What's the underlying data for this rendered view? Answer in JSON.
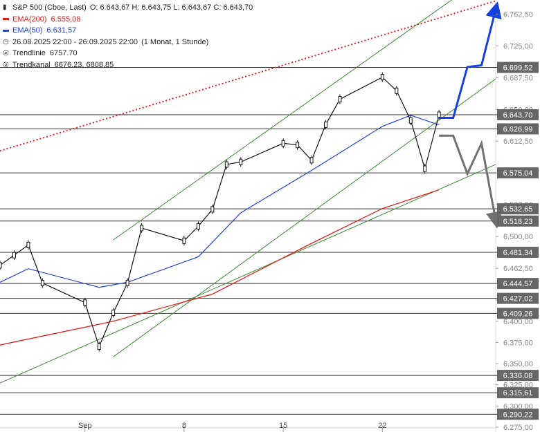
{
  "legend": {
    "title": "S&P 500 (Cboe, Last)",
    "ohlc": "O: 6.643,67  H: 6.643,75  L: 6.643,67  C: 6.643,70",
    "ema200_label": "EMA(200)",
    "ema200_value": "6.555,08",
    "ema50_label": "EMA(50)",
    "ema50_value": "6.631,57",
    "period": "26.08.2025 22:00 - 26.09.2025 22:00",
    "interval": "(1 Monat, 1 Stunde)",
    "trendline_label": "Trendlinie",
    "trendline_value": "6757.70",
    "trendchannel_label": "Trendkanal",
    "trendchannel_value": "6676.23, 6808.85"
  },
  "colors": {
    "ema200": "#e02020",
    "ema50": "#2040e0",
    "trend": "#3a8a30",
    "price": "#111111",
    "scenario_up": "#1540e0",
    "scenario_down": "#707070",
    "level_line": "#333333",
    "label_box": "#666666"
  },
  "chart_data": {
    "type": "candlestick",
    "title": "S&P 500 (Cboe, Last)",
    "ylim": [
      6275,
      6775
    ],
    "y_ticks": [
      "6.762,50",
      "6.725,00",
      "6.687,50",
      "6.650,00",
      "6.612,50",
      "6.575,00",
      "6.537,50",
      "6.500,00",
      "6.462,50",
      "6.425,00",
      "6.400,00",
      "6.375,00",
      "6.350,00",
      "6.325,00",
      "6.300,00",
      "6.275,00"
    ],
    "x_ticks": [
      "Sep",
      "8",
      "15",
      "22"
    ],
    "levels": [
      "6.699,52",
      "6.643,70",
      "6.626,99",
      "6.575,04",
      "6.532,65",
      "6.518,23",
      "6.481,34",
      "6.444,57",
      "6.427,02",
      "6.409,26",
      "6.336,08",
      "6.315,61",
      "6.290,22"
    ],
    "price_path": [
      {
        "date": "2025-08-26",
        "close": 6466
      },
      {
        "date": "2025-08-27",
        "close": 6478
      },
      {
        "date": "2025-08-28",
        "close": 6490
      },
      {
        "date": "2025-08-29",
        "close": 6445
      },
      {
        "date": "2025-09-01",
        "close": 6422
      },
      {
        "date": "2025-09-02",
        "close": 6370
      },
      {
        "date": "2025-09-03",
        "close": 6410
      },
      {
        "date": "2025-09-04",
        "close": 6445
      },
      {
        "date": "2025-09-05",
        "close": 6510
      },
      {
        "date": "2025-09-08",
        "close": 6495
      },
      {
        "date": "2025-09-09",
        "close": 6512
      },
      {
        "date": "2025-09-10",
        "close": 6532
      },
      {
        "date": "2025-09-11",
        "close": 6585
      },
      {
        "date": "2025-09-12",
        "close": 6588
      },
      {
        "date": "2025-09-15",
        "close": 6610
      },
      {
        "date": "2025-09-16",
        "close": 6608
      },
      {
        "date": "2025-09-17",
        "close": 6590
      },
      {
        "date": "2025-09-18",
        "close": 6632
      },
      {
        "date": "2025-09-19",
        "close": 6662
      },
      {
        "date": "2025-09-22",
        "close": 6688
      },
      {
        "date": "2025-09-23",
        "close": 6672
      },
      {
        "date": "2025-09-24",
        "close": 6637
      },
      {
        "date": "2025-09-25",
        "close": 6580
      },
      {
        "date": "2025-09-26",
        "close": 6643.7
      }
    ],
    "ema50_path": [
      {
        "date": "2025-08-26",
        "value": 6446
      },
      {
        "date": "2025-08-28",
        "value": 6462
      },
      {
        "date": "2025-09-02",
        "value": 6440
      },
      {
        "date": "2025-09-04",
        "value": 6446
      },
      {
        "date": "2025-09-09",
        "value": 6476
      },
      {
        "date": "2025-09-12",
        "value": 6528
      },
      {
        "date": "2025-09-17",
        "value": 6578
      },
      {
        "date": "2025-09-22",
        "value": 6630
      },
      {
        "date": "2025-09-24",
        "value": 6643
      },
      {
        "date": "2025-09-26",
        "value": 6631.57
      }
    ],
    "ema200_path": [
      {
        "date": "2025-08-26",
        "value": 6372
      },
      {
        "date": "2025-09-03",
        "value": 6400
      },
      {
        "date": "2025-09-10",
        "value": 6432
      },
      {
        "date": "2025-09-17",
        "value": 6492
      },
      {
        "date": "2025-09-22",
        "value": 6533
      },
      {
        "date": "2025-09-26",
        "value": 6555.08
      }
    ],
    "trendlinie": [
      {
        "date": "2025-08-26",
        "value": 6601
      },
      {
        "date": "2025-09-30",
        "value": 6778
      }
    ],
    "trendkanal_upper": [
      {
        "date": "2025-09-03",
        "value": 6496
      },
      {
        "date": "2025-09-30",
        "value": 6816
      }
    ],
    "trendkanal_lower": [
      {
        "date": "2025-09-03",
        "value": 6358
      },
      {
        "date": "2025-09-30",
        "value": 6686
      }
    ],
    "support_line": [
      {
        "date": "2025-08-26",
        "value": 6327
      },
      {
        "date": "2025-09-30",
        "value": 6585
      }
    ],
    "scenario_up": [
      {
        "date": "2025-09-26",
        "value": 6640
      },
      {
        "date": "2025-09-27",
        "value": 6640
      },
      {
        "date": "2025-09-28",
        "value": 6700
      },
      {
        "date": "2025-09-29",
        "value": 6702
      },
      {
        "date": "2025-09-30",
        "value": 6768
      }
    ],
    "scenario_down": [
      {
        "date": "2025-09-26",
        "value": 6619
      },
      {
        "date": "2025-09-27",
        "value": 6619
      },
      {
        "date": "2025-09-28",
        "value": 6574
      },
      {
        "date": "2025-09-29",
        "value": 6610
      },
      {
        "date": "2025-09-30",
        "value": 6519
      }
    ]
  }
}
